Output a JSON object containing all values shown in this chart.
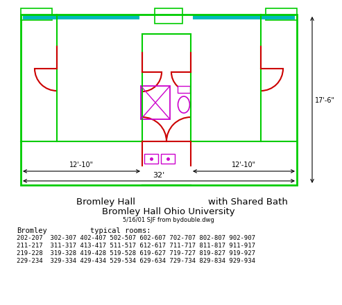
{
  "bg_color": "#ffffff",
  "wall_color": "#00cc00",
  "door_color": "#cc0000",
  "bath_color": "#cc00cc",
  "cyan_color": "#00bbbb",
  "title1_left": "Bromley Hall",
  "title1_right": "with Shared Bath",
  "title2": "Bromley Hall Ohio University",
  "subtitle": "5/16/01 SJF from bydouble.dwg",
  "dim_vert": "17'-6\"",
  "dim_left": "12'-10\"",
  "dim_right": "12'-10\"",
  "dim_full": "32'",
  "label_bromley": "Bromley",
  "label_typical": "typical rooms:",
  "rooms_line1": "202-207  302-307 402-407 502-507 602-607 702-707 802-807 902-907",
  "rooms_line2": "211-217  311-317 413-417 511-517 612-617 711-717 811-817 911-917",
  "rooms_line3": "219-228  319-328 419-428 519-528 619-627 719-727 819-827 919-927",
  "rooms_line4": "229-234  329-334 429-434 529-534 629-634 729-734 829-834 929-934"
}
